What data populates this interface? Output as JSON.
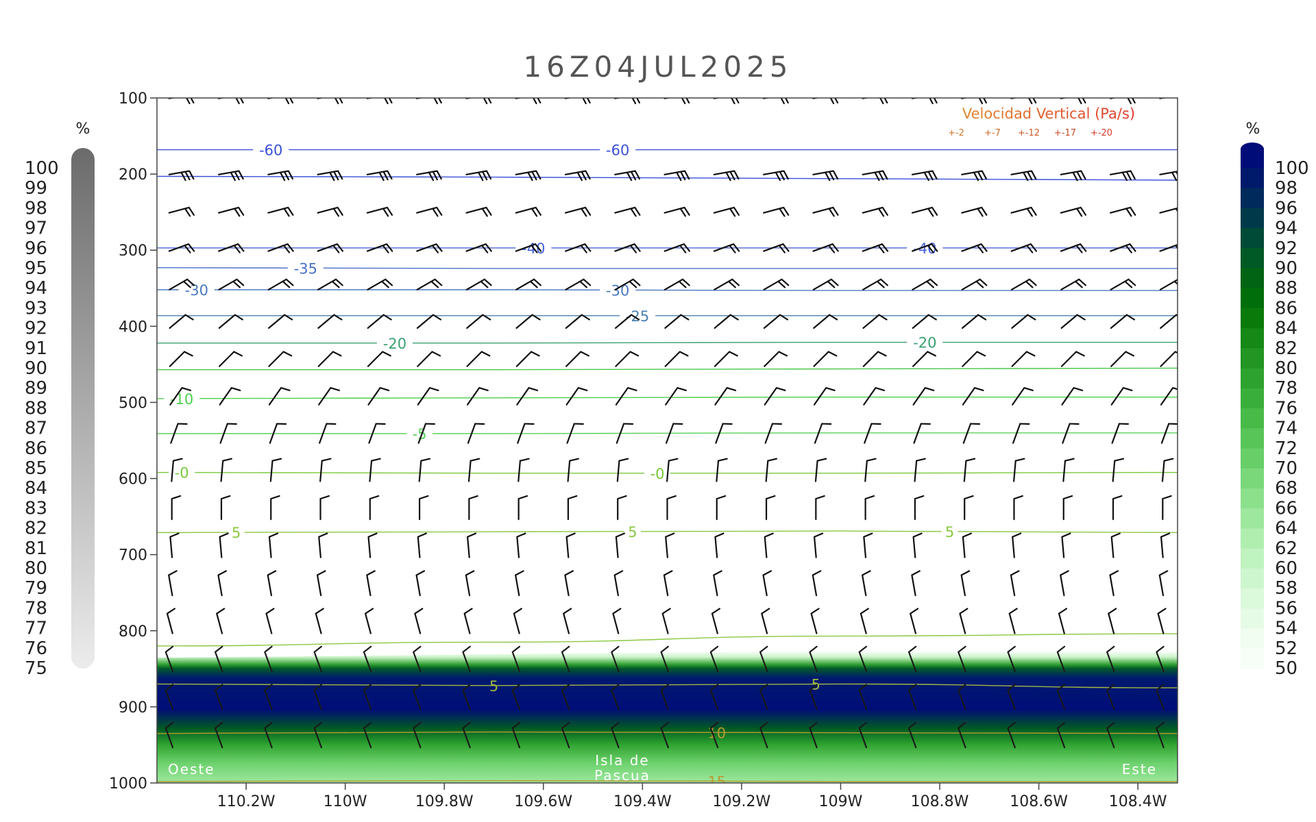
{
  "chart_data": {
    "type": "heatmap",
    "title": "16Z04JUL2025",
    "x_ticks": [
      "110.2W",
      "110W",
      "109.8W",
      "109.6W",
      "109.4W",
      "109.2W",
      "109W",
      "108.8W",
      "108.6W",
      "108.4W"
    ],
    "x_tick_values": [
      -110.2,
      -110.0,
      -109.8,
      -109.6,
      -109.4,
      -109.2,
      -109.0,
      -108.8,
      -108.6,
      -108.4
    ],
    "xlim": [
      -110.38,
      -108.32
    ],
    "y_ticks": [
      "100",
      "200",
      "300",
      "400",
      "500",
      "600",
      "700",
      "800",
      "900",
      "1000"
    ],
    "y_tick_values": [
      100,
      200,
      300,
      400,
      500,
      600,
      700,
      800,
      900,
      1000
    ],
    "ylim": [
      100,
      1000
    ],
    "left_colorbar": {
      "unit": "%",
      "labels": [
        "100",
        "99",
        "98",
        "97",
        "96",
        "95",
        "94",
        "93",
        "92",
        "91",
        "90",
        "89",
        "88",
        "87",
        "86",
        "85",
        "84",
        "83",
        "82",
        "81",
        "80",
        "79",
        "78",
        "77",
        "76",
        "75"
      ],
      "colors": [
        "#6b6b6b",
        "#ececec"
      ]
    },
    "right_colorbar": {
      "unit": "%",
      "labels": [
        "100",
        "98",
        "96",
        "94",
        "92",
        "90",
        "88",
        "86",
        "84",
        "82",
        "80",
        "78",
        "76",
        "74",
        "72",
        "70",
        "68",
        "66",
        "64",
        "62",
        "60",
        "58",
        "56",
        "54",
        "52",
        "50"
      ],
      "colors": [
        "#000d78",
        "#001a6b",
        "#002a5c",
        "#003a4a",
        "#004a38",
        "#005a26",
        "#006414",
        "#006e0a",
        "#0a7a0a",
        "#168816",
        "#229522",
        "#2ea22e",
        "#3aae3a",
        "#48ba48",
        "#58c558",
        "#68cf68",
        "#7ad87a",
        "#8ce08c",
        "#9ee79e",
        "#afeeaf",
        "#bff3bf",
        "#cef6ce",
        "#dbf9db",
        "#e6fbe6",
        "#f0fdf0",
        "#f7fef7"
      ]
    },
    "humidity_layer": {
      "pressure_top": 830,
      "pressure_core": [
        865,
        930
      ],
      "pressure_bottom": 1000
    },
    "temperature_contours": [
      {
        "value": "-60",
        "color": "#3a50d8",
        "p": [
          168,
          168,
          168,
          168
        ],
        "labels_x": [
          -110.15,
          -109.45
        ]
      },
      {
        "value": "-60",
        "color": "#3a50d8",
        "p": [
          203,
          204,
          206,
          208
        ],
        "labels_x": []
      },
      {
        "value": "-40",
        "color": "#4a64d8",
        "p": [
          297,
          297,
          297,
          297
        ],
        "labels_x": [
          -109.62,
          -108.83
        ]
      },
      {
        "value": "-35",
        "color": "#4a70c8",
        "p": [
          323,
          324,
          324,
          324
        ],
        "labels_x": [
          -110.08
        ]
      },
      {
        "value": "-30",
        "color": "#4a78c0",
        "p": [
          352,
          352,
          353,
          353
        ],
        "labels_x": [
          -110.3,
          -109.45
        ]
      },
      {
        "value": "-25",
        "color": "#4a80b0",
        "p": [
          386,
          386,
          386,
          386
        ],
        "labels_x": [
          -109.41
        ]
      },
      {
        "value": "-20",
        "color": "#3aa070",
        "p": [
          422,
          422,
          421,
          421
        ],
        "labels_x": [
          -109.9,
          -108.83
        ]
      },
      {
        "value": "",
        "color": "#48c848",
        "p": [
          457,
          457,
          456,
          455
        ],
        "labels_x": []
      },
      {
        "value": "-10",
        "color": "#4ad04a",
        "p": [
          495,
          494,
          493,
          493
        ],
        "labels_x": [
          -110.33
        ]
      },
      {
        "value": "-5",
        "color": "#58d058",
        "p": [
          541,
          541,
          540,
          540
        ],
        "labels_x": [
          -109.85
        ]
      },
      {
        "value": "-0",
        "color": "#7ac83a",
        "p": [
          592,
          593,
          593,
          592
        ],
        "labels_x": [
          -110.33,
          -109.37
        ]
      },
      {
        "value": "5",
        "color": "#8ac840",
        "p": [
          671,
          670,
          669,
          671
        ],
        "labels_x": [
          -110.22,
          -109.42,
          -108.78
        ]
      },
      {
        "value": "",
        "color": "#8ac840",
        "p": [
          820,
          815,
          807,
          804
        ],
        "labels_x": []
      },
      {
        "value": "5",
        "color": "#a0b840",
        "p": [
          870,
          872,
          870,
          875
        ],
        "labels_x": [
          -109.7,
          -109.05
        ]
      },
      {
        "value": "10",
        "color": "#b89a30",
        "p": [
          935,
          933,
          934,
          935
        ],
        "labels_x": [
          -109.25
        ]
      },
      {
        "value": "15",
        "color": "#b89a30",
        "p": [
          998,
          997,
          998,
          998
        ],
        "labels_x": [
          -109.25
        ]
      }
    ],
    "wind_barbs": {
      "rows": [
        {
          "p": 100,
          "dir": 260,
          "barbs": 2
        },
        {
          "p": 200,
          "dir": 260,
          "barbs": 3
        },
        {
          "p": 250,
          "dir": 255,
          "barbs": 2
        },
        {
          "p": 300,
          "dir": 250,
          "barbs": 2
        },
        {
          "p": 350,
          "dir": 240,
          "barbs": 2
        },
        {
          "p": 400,
          "dir": 230,
          "barbs": 1
        },
        {
          "p": 450,
          "dir": 225,
          "barbs": 1
        },
        {
          "p": 500,
          "dir": 215,
          "barbs": 1
        },
        {
          "p": 550,
          "dir": 200,
          "barbs": 1
        },
        {
          "p": 600,
          "dir": 185,
          "barbs": 1
        },
        {
          "p": 650,
          "dir": 180,
          "barbs": 1
        },
        {
          "p": 700,
          "dir": 175,
          "barbs": 1
        },
        {
          "p": 750,
          "dir": 170,
          "barbs": 1
        },
        {
          "p": 800,
          "dir": 165,
          "barbs": 1
        },
        {
          "p": 850,
          "dir": 160,
          "barbs": 1
        },
        {
          "p": 900,
          "dir": 160,
          "barbs": 1
        },
        {
          "p": 950,
          "dir": 160,
          "barbs": 1
        }
      ],
      "columns_x": [
        -110.35,
        -110.25,
        -110.15,
        -110.05,
        -109.95,
        -109.85,
        -109.75,
        -109.65,
        -109.55,
        -109.45,
        -109.35,
        -109.25,
        -109.15,
        -109.05,
        -108.95,
        -108.85,
        -108.75,
        -108.65,
        -108.55,
        -108.45,
        -108.35
      ]
    },
    "vertical_velocity_legend": {
      "title": "Velocidad Vertical (Pa/s)",
      "levels": [
        "+-2",
        "+-7",
        "+-12",
        "+-17",
        "+-20"
      ]
    },
    "annotations": {
      "west": "Oeste",
      "center_line1": "Isla de",
      "center_line2": "Pascua",
      "east": "Este"
    }
  }
}
